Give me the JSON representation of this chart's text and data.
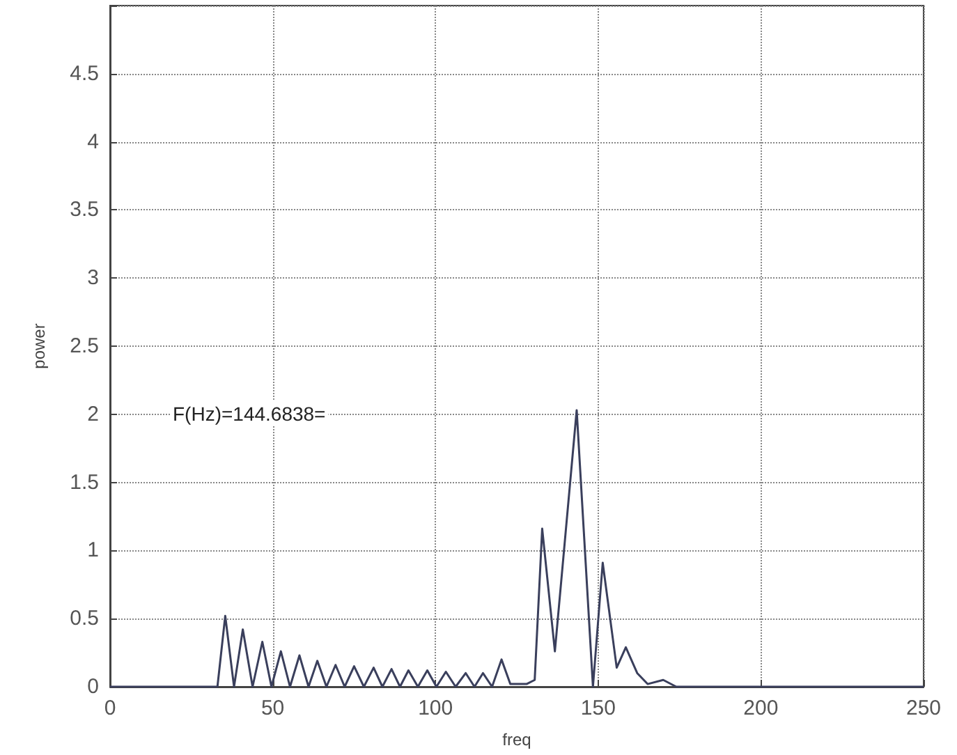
{
  "chart_data": {
    "type": "line",
    "xlabel": "freq",
    "ylabel": "power",
    "annotations": [
      "F(Hz)=144.6838="
    ],
    "xlim": [
      0,
      250
    ],
    "xticks": [
      0,
      50,
      100,
      150,
      200,
      250
    ],
    "ylim": [
      0,
      5
    ],
    "yticks": [
      0,
      0.5,
      1,
      1.5,
      2,
      2.5,
      3,
      3.5,
      4,
      4.5,
      {
        "value": 5,
        "label": null
      }
    ],
    "grid": true,
    "marker": "none",
    "line_style": "solid",
    "series": [
      {
        "color": "#3a3f5c",
        "x": [
          0,
          33,
          35.4,
          38.1,
          40.8,
          43.8,
          46.8,
          49.6,
          52.5,
          55.3,
          58.2,
          61,
          63.7,
          66.5,
          69.3,
          72.1,
          75,
          78,
          81,
          83.7,
          86.5,
          89.1,
          91.7,
          94.6,
          97.5,
          100.3,
          103.2,
          106.2,
          109.3,
          112,
          114.6,
          117.4,
          120.3,
          123,
          128,
          130.5,
          132.8,
          136.7,
          143.4,
          148.4,
          151.4,
          155.7,
          158.5,
          162,
          165.2,
          170,
          174,
          250
        ],
        "values": [
          0,
          0,
          0.52,
          0,
          0.42,
          0,
          0.33,
          0,
          0.26,
          0,
          0.23,
          0,
          0.19,
          0,
          0.16,
          0,
          0.15,
          0,
          0.14,
          0,
          0.13,
          0,
          0.12,
          0,
          0.12,
          0,
          0.11,
          0,
          0.1,
          0,
          0.1,
          0,
          0.2,
          0.02,
          0.02,
          0.05,
          1.16,
          0.26,
          2.03,
          0,
          0.91,
          0.14,
          0.29,
          0.1,
          0.02,
          0.05,
          0,
          0
        ]
      }
    ]
  }
}
